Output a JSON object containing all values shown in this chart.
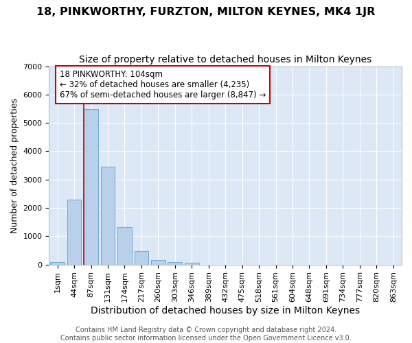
{
  "title": "18, PINKWORTHY, FURZTON, MILTON KEYNES, MK4 1JR",
  "subtitle": "Size of property relative to detached houses in Milton Keynes",
  "xlabel": "Distribution of detached houses by size in Milton Keynes",
  "ylabel": "Number of detached properties",
  "footer_line1": "Contains HM Land Registry data © Crown copyright and database right 2024.",
  "footer_line2": "Contains public sector information licensed under the Open Government Licence v3.0.",
  "categories": [
    "1sqm",
    "44sqm",
    "87sqm",
    "131sqm",
    "174sqm",
    "217sqm",
    "260sqm",
    "303sqm",
    "346sqm",
    "389sqm",
    "432sqm",
    "475sqm",
    "518sqm",
    "561sqm",
    "604sqm",
    "648sqm",
    "691sqm",
    "734sqm",
    "777sqm",
    "820sqm",
    "863sqm"
  ],
  "values": [
    80,
    2300,
    5480,
    3450,
    1330,
    470,
    160,
    90,
    55,
    0,
    0,
    0,
    0,
    0,
    0,
    0,
    0,
    0,
    0,
    0,
    0
  ],
  "bar_color": "#b8d0ea",
  "bar_edge_color": "#6aaad4",
  "vline_x_index": 2,
  "vline_color": "#cc0000",
  "annotation_line1": "18 PINKWORTHY: 104sqm",
  "annotation_line2": "← 32% of detached houses are smaller (4,235)",
  "annotation_line3": "67% of semi-detached houses are larger (8,847) →",
  "annotation_box_color": "white",
  "annotation_box_edge_color": "#cc0000",
  "ylim": [
    0,
    7000
  ],
  "yticks": [
    0,
    1000,
    2000,
    3000,
    4000,
    5000,
    6000,
    7000
  ],
  "background_color": "#dce8f5",
  "grid_color": "white",
  "title_fontsize": 11.5,
  "subtitle_fontsize": 10,
  "xlabel_fontsize": 10,
  "ylabel_fontsize": 9,
  "tick_fontsize": 8,
  "annot_fontsize": 8.5,
  "footer_fontsize": 7
}
